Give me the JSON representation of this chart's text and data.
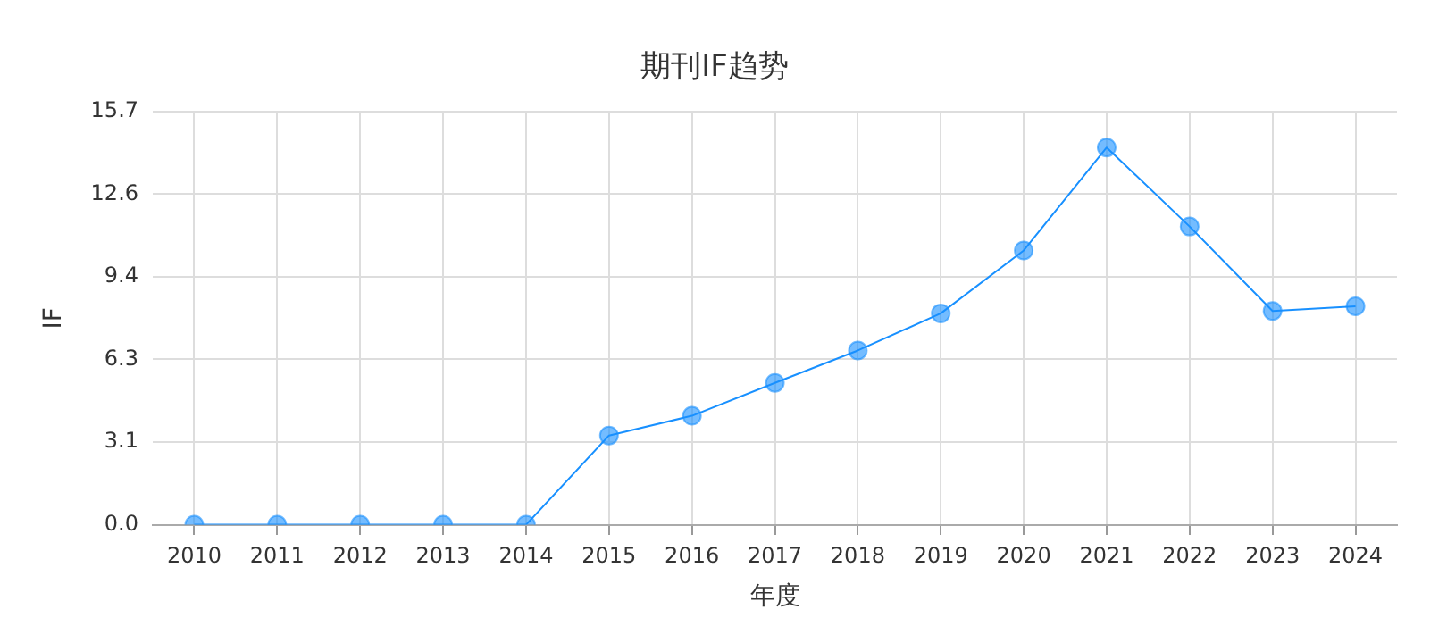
{
  "chart_data": {
    "type": "line",
    "title": "期刊IF趋势",
    "xlabel": "年度",
    "ylabel": "IF",
    "categories": [
      "2010",
      "2011",
      "2012",
      "2013",
      "2014",
      "2015",
      "2016",
      "2017",
      "2018",
      "2019",
      "2020",
      "2021",
      "2022",
      "2023",
      "2024"
    ],
    "series": [
      {
        "color": "#1890ff",
        "values": [
          0,
          0,
          0,
          0,
          0,
          3.39,
          4.14,
          5.39,
          6.62,
          8.03,
          10.42,
          14.33,
          11.33,
          8.12,
          8.3
        ]
      }
    ],
    "ylim": [
      0,
      15.7
    ],
    "yticks": [
      {
        "value": 0,
        "label": "0.0"
      },
      {
        "value": 3.14,
        "label": "3.1"
      },
      {
        "value": 6.28,
        "label": "6.3"
      },
      {
        "value": 9.42,
        "label": "9.4"
      },
      {
        "value": 12.56,
        "label": "12.6"
      },
      {
        "value": 15.7,
        "label": "15.7"
      }
    ],
    "grid": true,
    "legend": false,
    "marker": "circle",
    "line_style": "solid"
  }
}
